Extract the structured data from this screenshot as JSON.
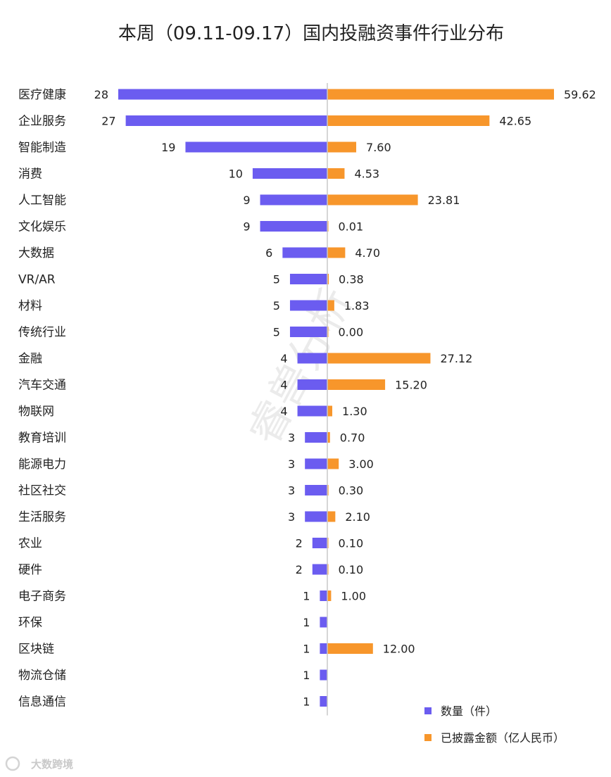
{
  "chart_data": {
    "type": "bar",
    "orientation": "diverging-horizontal",
    "title": "本周（09.11-09.17）国内投融资事件行业分布",
    "categories": [
      "医疗健康",
      "企业服务",
      "智能制造",
      "消费",
      "人工智能",
      "文化娱乐",
      "大数据",
      "VR/AR",
      "材料",
      "传统行业",
      "金融",
      "汽车交通",
      "物联网",
      "教育培训",
      "能源电力",
      "社区社交",
      "生活服务",
      "农业",
      "硬件",
      "电子商务",
      "环保",
      "区块链",
      "物流仓储",
      "信息通信"
    ],
    "series": [
      {
        "name": "数量（件）",
        "color": "#6b5cf0",
        "side": "left",
        "values": [
          28,
          27,
          19,
          10,
          9,
          9,
          6,
          5,
          5,
          5,
          4,
          4,
          4,
          3,
          3,
          3,
          3,
          2,
          2,
          1,
          1,
          1,
          1,
          1
        ],
        "labels": [
          "28",
          "27",
          "19",
          "10",
          "9",
          "9",
          "6",
          "5",
          "5",
          "5",
          "4",
          "4",
          "4",
          "3",
          "3",
          "3",
          "3",
          "2",
          "2",
          "1",
          "1",
          "1",
          "1",
          "1"
        ]
      },
      {
        "name": "已披露金额（亿人民币）",
        "color": "#f7962b",
        "side": "right",
        "values": [
          59.62,
          42.65,
          7.6,
          4.53,
          23.81,
          0.01,
          4.7,
          0.38,
          1.83,
          0.0,
          27.12,
          15.2,
          1.3,
          0.7,
          3.0,
          0.3,
          2.1,
          0.1,
          0.1,
          1.0,
          null,
          12.0,
          null,
          null
        ],
        "labels": [
          "59.62",
          "42.65",
          "7.60",
          "4.53",
          "23.81",
          "0.01",
          "4.70",
          "0.38",
          "1.83",
          "0.00",
          "27.12",
          "15.20",
          "1.30",
          "0.70",
          "3.00",
          "0.30",
          "2.10",
          "0.10",
          "0.10",
          "1.00",
          "",
          "12.00",
          "",
          ""
        ]
      }
    ],
    "legend_position": "bottom-right",
    "grid": false
  },
  "watermark": "睿兽分析",
  "logo_text": "大数跨境"
}
